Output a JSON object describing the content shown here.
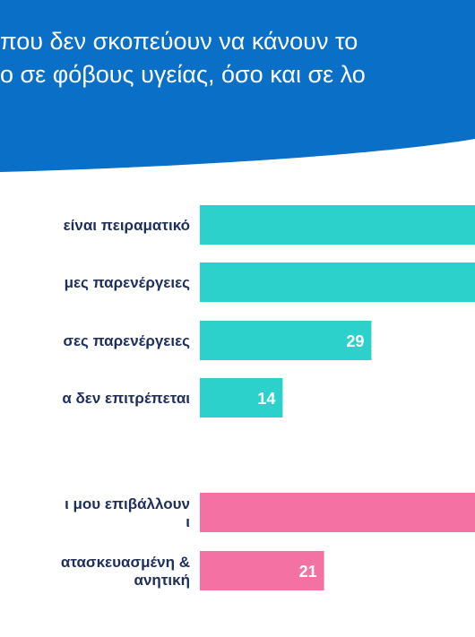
{
  "header": {
    "line1": "που δεν σκοπεύουν να κάνουν το",
    "line2": "ο σε φόβους υγείας, όσο και σε λο"
  },
  "colors": {
    "header_blue": "#0a6fc6",
    "group1_teal": "#2dd1cb",
    "group2_pink": "#f472a3",
    "label_navy": "#1f2f5c"
  },
  "chart_data": {
    "type": "bar",
    "orientation": "horizontal",
    "categories": [
      "είναι πειραματικό",
      "μες παρενέργειες",
      "σες παρενέργειες",
      "α δεν επιτρέπεται",
      "ι μου επιβάλλουν",
      "ατασκευασμένη & ανητική"
    ],
    "category_lines": [
      [
        "είναι πειραματικό"
      ],
      [
        "μες παρενέργειες"
      ],
      [
        "σες παρενέργειες"
      ],
      [
        "α δεν επιτρέπεται"
      ],
      [
        "ι μου επιβάλλουν",
        "ι"
      ],
      [
        "ατασκευασμένη &",
        "ανητική"
      ]
    ],
    "values": [
      null,
      null,
      29,
      14,
      null,
      21
    ],
    "data_labels": [
      "",
      "",
      "29",
      "14",
      "",
      "21"
    ],
    "groups": [
      0,
      0,
      0,
      0,
      1,
      1
    ],
    "display_extent": [
      70,
      70,
      29,
      14,
      70,
      21
    ],
    "xlim": [
      0,
      70
    ],
    "grid": false,
    "legend": "none"
  }
}
